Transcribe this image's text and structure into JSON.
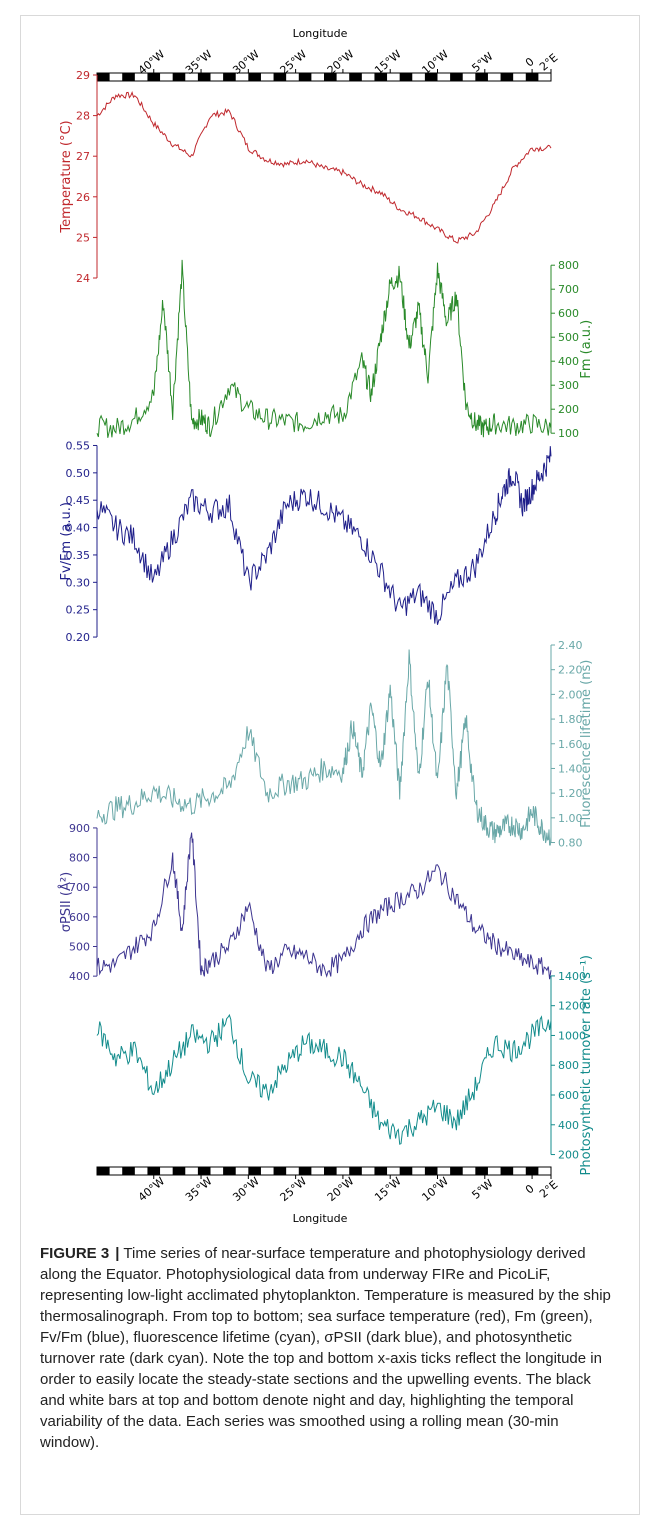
{
  "figure": {
    "label": "FIGURE 3",
    "separator": "|",
    "caption": "Time series of near-surface temperature and photophysiology derived along the Equator. Photophysiological data from underway FIRe and PicoLiF, representing low-light acclimated phytoplankton. Temperature is measured by the ship thermosalinograph. From top to bottom; sea surface temperature (red), Fm (green), Fv/Fm (blue), fluorescence lifetime (cyan), σPSII (dark blue), and photosynthetic turnover rate (dark cyan). Note the top and bottom x-axis ticks reflect the longitude in order to easily locate the steady-state sections and the upwelling events. The black and white bars at top and bottom denote night and day, highlighting the temporal variability of the data. Each series was smoothed using a rolling mean (30-min window)."
  },
  "colors": {
    "temperature": "#c0282d",
    "fm": "#2a8a2a",
    "fvfm": "#1f1f8a",
    "lifetime": "#6aa8a8",
    "sigma": "#3d3590",
    "turnover": "#138c8c"
  },
  "chart_data": {
    "type": "line",
    "x_axis": {
      "label": "Longitude",
      "ticks": [
        "40°W",
        "35°W",
        "30°W",
        "25°W",
        "20°W",
        "15°W",
        "10°W",
        "5°W",
        "0",
        "2°E"
      ],
      "tick_values": [
        -40,
        -35,
        -30,
        -25,
        -20,
        -15,
        -10,
        -5,
        0,
        2
      ],
      "positions_on_both_top_and_bottom": true
    },
    "day_night_bar": {
      "segments": 36,
      "pattern": "alternating black (night) / white (day)"
    },
    "panels": [
      {
        "name": "Temperature (°C)",
        "side": "left",
        "color_key": "temperature",
        "ylim": [
          24,
          29
        ],
        "ticks": [
          24,
          25,
          26,
          27,
          28,
          29
        ],
        "x": [
          -46,
          -44,
          -42,
          -40,
          -38,
          -36,
          -34,
          -32,
          -30,
          -28,
          -26,
          -24,
          -22,
          -20,
          -18,
          -16,
          -14,
          -12,
          -10,
          -8,
          -6,
          -4,
          -2,
          0,
          2
        ],
        "values": [
          28.0,
          28.5,
          28.5,
          27.8,
          27.3,
          27.0,
          28.0,
          28.1,
          27.2,
          26.9,
          26.8,
          26.9,
          26.7,
          26.6,
          26.3,
          26.1,
          25.7,
          25.5,
          25.2,
          24.9,
          25.1,
          25.8,
          26.7,
          27.2,
          27.2
        ]
      },
      {
        "name": "Fm (a.u.)",
        "side": "right",
        "color_key": "fm",
        "ylim": [
          80,
          830
        ],
        "ticks": [
          100,
          200,
          300,
          400,
          500,
          600,
          700,
          800
        ],
        "x": [
          -46,
          -44,
          -42,
          -40,
          -39,
          -38,
          -37,
          -36,
          -35,
          -34,
          -32,
          -30,
          -28,
          -26,
          -24,
          -22,
          -20,
          -18,
          -17,
          -16,
          -15,
          -14,
          -13,
          -12,
          -11,
          -10,
          -9,
          -8,
          -7,
          -6,
          -5,
          -4,
          -2,
          0,
          2
        ],
        "values": [
          130,
          120,
          160,
          260,
          650,
          200,
          780,
          150,
          160,
          130,
          300,
          200,
          160,
          150,
          140,
          180,
          170,
          400,
          260,
          500,
          720,
          760,
          460,
          620,
          340,
          780,
          560,
          680,
          220,
          140,
          120,
          140,
          130,
          140,
          120
        ]
      },
      {
        "name": "Fv/Fm (a.u.)",
        "side": "left",
        "color_key": "fvfm",
        "ylim": [
          0.18,
          0.56
        ],
        "ticks": [
          0.2,
          0.25,
          0.3,
          0.35,
          0.4,
          0.45,
          0.5,
          0.55
        ],
        "x": [
          -46,
          -44,
          -42,
          -40,
          -38,
          -36,
          -34,
          -32,
          -30,
          -28,
          -26,
          -24,
          -22,
          -20,
          -18,
          -16,
          -14,
          -12,
          -10,
          -8,
          -6,
          -4,
          -3,
          -2,
          -1,
          0,
          1,
          2
        ],
        "values": [
          0.44,
          0.4,
          0.38,
          0.3,
          0.38,
          0.45,
          0.43,
          0.44,
          0.3,
          0.35,
          0.44,
          0.46,
          0.44,
          0.41,
          0.38,
          0.32,
          0.25,
          0.28,
          0.24,
          0.3,
          0.33,
          0.42,
          0.47,
          0.5,
          0.44,
          0.47,
          0.5,
          0.53
        ]
      },
      {
        "name": "Fluorescence lifetime (ns)",
        "side": "right",
        "color_key": "lifetime",
        "ylim": [
          0.78,
          2.4
        ],
        "ticks": [
          0.8,
          1.0,
          1.2,
          1.4,
          1.6,
          1.8,
          2.0,
          2.2,
          2.4
        ],
        "x": [
          -46,
          -44,
          -42,
          -40,
          -38,
          -36,
          -34,
          -32,
          -30,
          -28,
          -26,
          -24,
          -22,
          -20,
          -19,
          -18,
          -17,
          -16,
          -15,
          -14,
          -13,
          -12,
          -11,
          -10,
          -9,
          -8,
          -7,
          -6,
          -5,
          -4,
          -3,
          -2,
          -1,
          0,
          1,
          2
        ],
        "values": [
          1.02,
          1.08,
          1.12,
          1.22,
          1.15,
          1.1,
          1.18,
          1.25,
          1.7,
          1.2,
          1.28,
          1.3,
          1.4,
          1.38,
          1.75,
          1.35,
          1.9,
          1.4,
          2.05,
          1.2,
          2.3,
          1.3,
          2.15,
          1.25,
          2.25,
          1.2,
          1.8,
          1.1,
          0.95,
          0.88,
          0.92,
          0.95,
          0.9,
          1.05,
          0.92,
          0.85
        ]
      },
      {
        "name": "σPSII (Å²)",
        "side": "left",
        "color_key": "sigma",
        "ylim": [
          360,
          920
        ],
        "ticks": [
          400,
          500,
          600,
          700,
          800,
          900
        ],
        "x": [
          -46,
          -44,
          -42,
          -40,
          -38,
          -37,
          -36,
          -35,
          -34,
          -32,
          -30,
          -28,
          -26,
          -24,
          -22,
          -20,
          -18,
          -16,
          -14,
          -12,
          -10,
          -8,
          -6,
          -4,
          -2,
          0,
          2
        ],
        "values": [
          430,
          440,
          500,
          560,
          800,
          550,
          900,
          420,
          450,
          500,
          640,
          420,
          480,
          470,
          420,
          450,
          560,
          620,
          660,
          690,
          760,
          660,
          560,
          510,
          470,
          440,
          420
        ]
      },
      {
        "name": "Photosynthetic turnover rate (s⁻¹)",
        "side": "right",
        "color_key": "turnover",
        "ylim": [
          150,
          1480
        ],
        "ticks": [
          200,
          400,
          600,
          800,
          1000,
          1200,
          1400
        ],
        "x": [
          -46,
          -44,
          -42,
          -40,
          -38,
          -36,
          -34,
          -32,
          -30,
          -28,
          -26,
          -24,
          -22,
          -20,
          -18,
          -16,
          -14,
          -12,
          -10,
          -8,
          -6,
          -4,
          -2,
          0,
          2
        ],
        "values": [
          1050,
          850,
          900,
          620,
          820,
          1000,
          950,
          1100,
          700,
          620,
          800,
          950,
          900,
          850,
          650,
          400,
          340,
          420,
          520,
          420,
          650,
          950,
          900,
          1000,
          1100
        ]
      }
    ]
  }
}
